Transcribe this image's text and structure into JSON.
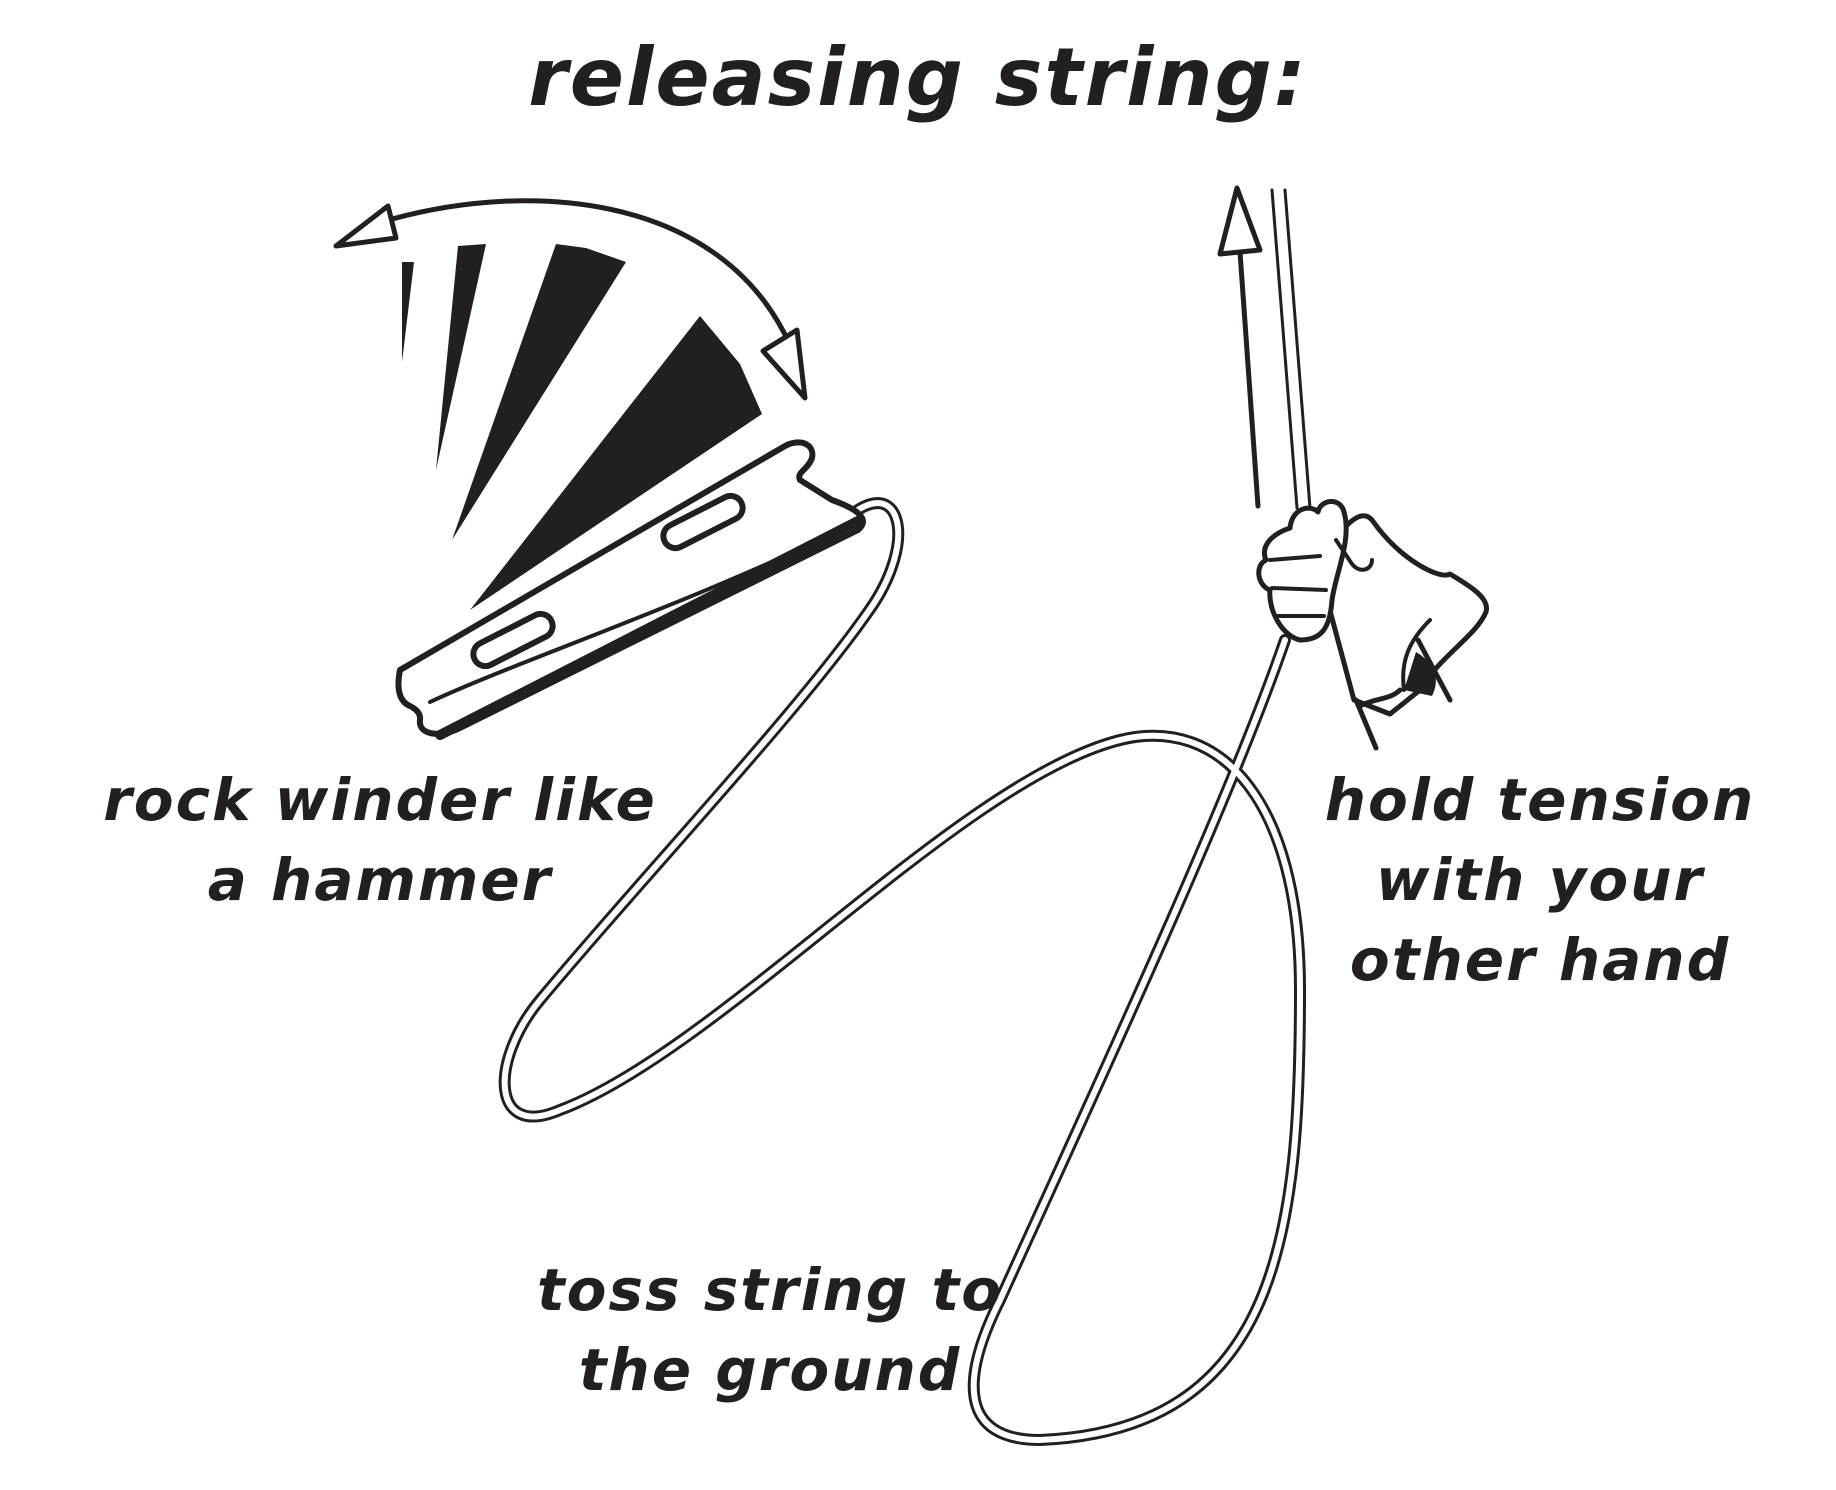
{
  "title": "releasing string:",
  "captions": {
    "rock": [
      "rock winder like",
      "a hammer"
    ],
    "hold": [
      "hold tension",
      "with your",
      "other hand"
    ],
    "toss": [
      "toss string to",
      "the ground"
    ]
  },
  "colors": {
    "ink": "#231f20",
    "paper": "#ffffff"
  },
  "icons": [
    "curved-arrow-icon",
    "up-arrow-icon",
    "hand-icon",
    "winder-icon"
  ]
}
